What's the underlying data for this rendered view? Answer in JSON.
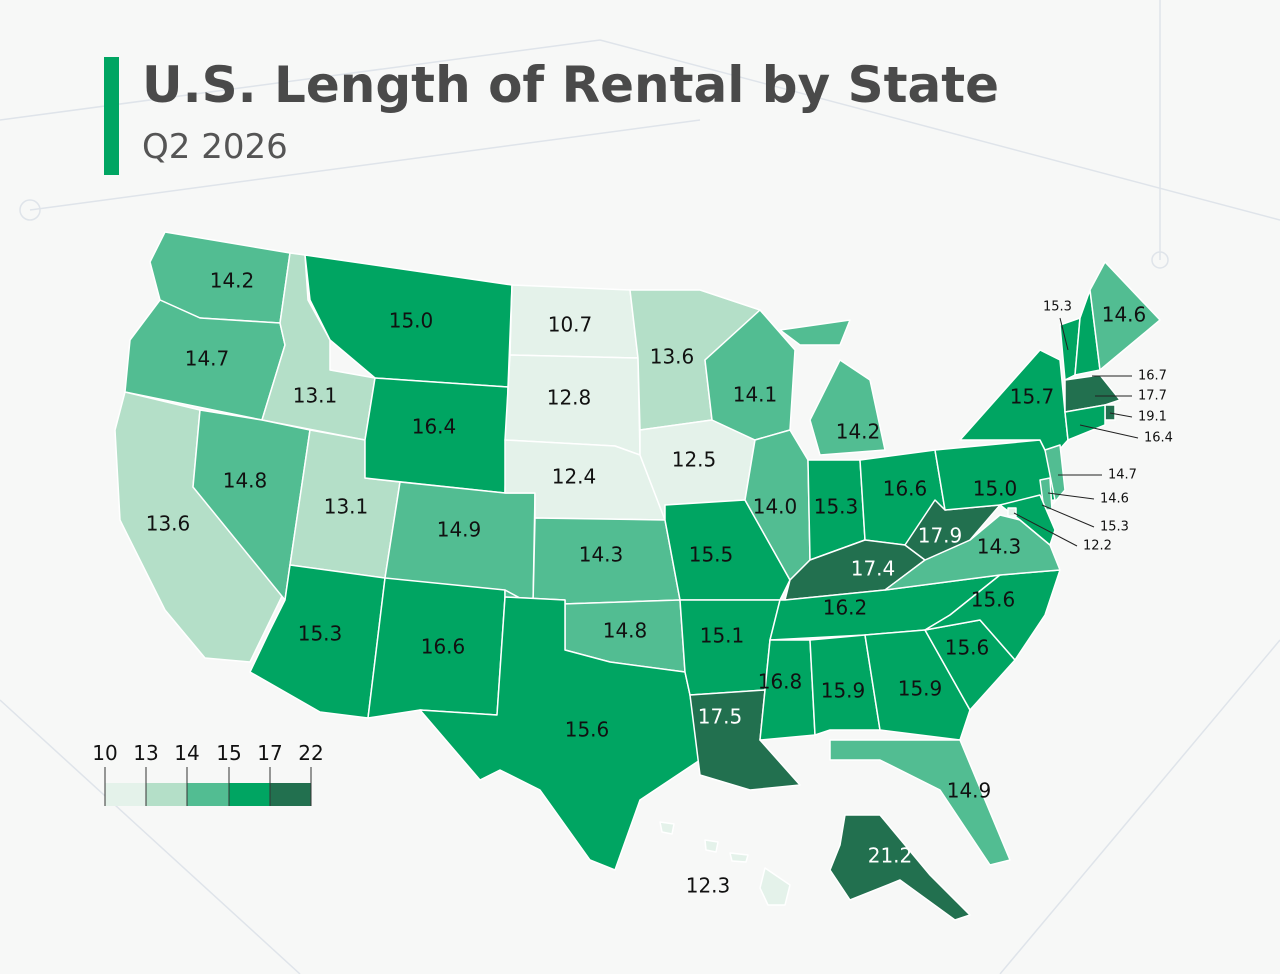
{
  "title": "U.S. Length of Rental by State",
  "subtitle": "Q2 2026",
  "legend": {
    "ticks": [
      10,
      13,
      14,
      15,
      17,
      22
    ],
    "colors": [
      "#e4f2ea",
      "#b4dfc8",
      "#52bd92",
      "#00a562",
      "#22704f"
    ]
  },
  "states": {
    "values": [
      14.2,
      14.7,
      13.6,
      13.1,
      14.8,
      13.1,
      15.3,
      15,
      16.4,
      14.9,
      16.6,
      10.7,
      12.8,
      12.4,
      14.3,
      14.8,
      15.6,
      13.6,
      12.5,
      15.5,
      15.1,
      17.5,
      14.1,
      14,
      14.2,
      15.3,
      16.6,
      17.4,
      16.2,
      16.8,
      15.9,
      15.9,
      14.9,
      15.6,
      15.6,
      14.3,
      17.9,
      15,
      15.7,
      15.3,
      16.7,
      14.6,
      17.7,
      19.1,
      16.4,
      14.7,
      14.6,
      15.3,
      12.2,
      21.2,
      12.3
    ],
    "value_labels": [
      "14.2",
      "14.7",
      "13.6",
      "13.1",
      "14.8",
      "13.1",
      "15.3",
      "15.0",
      "16.4",
      "14.9",
      "16.6",
      "10.7",
      "12.8",
      "12.4",
      "14.3",
      "14.8",
      "15.6",
      "13.6",
      "12.5",
      "15.5",
      "15.1",
      "17.5",
      "14.1",
      "14.0",
      "14.2",
      "15.3",
      "16.6",
      "17.4",
      "16.2",
      "16.8",
      "15.9",
      "15.9",
      "14.9",
      "15.6",
      "15.6",
      "14.3",
      "17.9",
      "15.0",
      "15.7",
      "15.3",
      "16.7",
      "14.6",
      "17.7",
      "19.1",
      "16.4",
      "14.7",
      "14.6",
      "15.3",
      "12.2",
      "21.2",
      "12.3"
    ]
  }
}
